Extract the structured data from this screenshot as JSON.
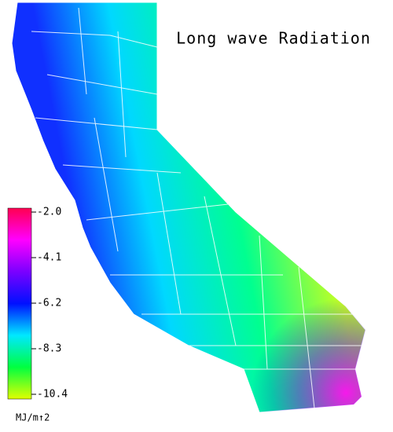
{
  "title": "Long wave Radiation",
  "colorbar": {
    "lim": [
      -10.4,
      -2
    ],
    "ticks": [
      {
        "value": -2,
        "label": "-2.0"
      },
      -4.1,
      -6.2,
      -8.3,
      -10.4
    ],
    "colors": [
      "#ff0050",
      "#ff00ff",
      "#7a00ff",
      "#0010ff",
      "#00e8ff",
      "#00ff40",
      "#e0ff00"
    ],
    "unit": "MJ/m↑2"
  }
}
